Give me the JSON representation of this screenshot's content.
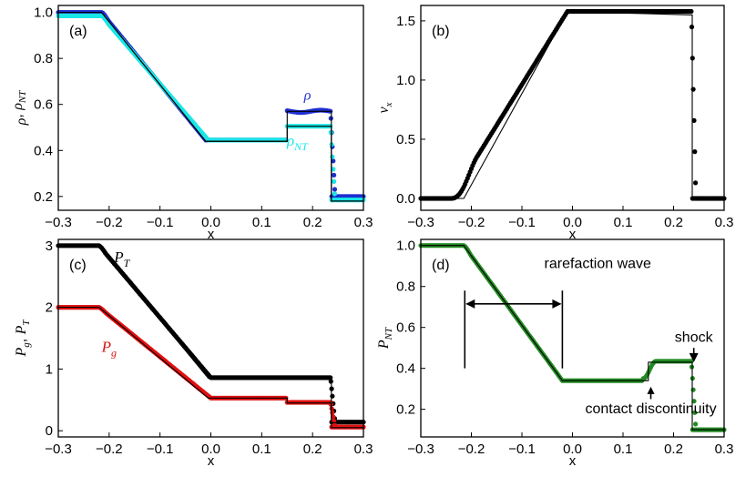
{
  "figure": {
    "colors": {
      "black": "#000000",
      "blue": "#1f2fd0",
      "cyan": "#19e6e6",
      "red": "#e01010",
      "green": "#228b22",
      "exact": "#000000"
    }
  },
  "chart_data": [
    {
      "type": "line",
      "panel_label": "(a)",
      "xlabel": "x",
      "ylabel_parts": [
        "ρ",
        ", ",
        "ρ",
        "NT"
      ],
      "xlim": [
        -0.3,
        0.3
      ],
      "ylim": [
        0.14,
        1.03
      ],
      "xticks": [
        -0.3,
        -0.2,
        -0.1,
        0.0,
        0.1,
        0.2,
        0.3
      ],
      "xtick_labels": [
        "−0.3",
        "−0.2",
        "−0.1",
        "0.0",
        "0.1",
        "0.2",
        "0.3"
      ],
      "yticks": [
        0.2,
        0.4,
        0.6,
        0.8,
        1.0
      ],
      "ytick_labels": [
        "0.2",
        "0.4",
        "0.6",
        "0.8",
        "1.0"
      ],
      "exact_lines": [
        {
          "name": "exact ρ",
          "x": [
            -0.3,
            -0.215,
            -0.01,
            0.15,
            0.15,
            0.237,
            0.237,
            0.3
          ],
          "y": [
            1.0,
            1.0,
            0.44,
            0.44,
            0.57,
            0.57,
            0.18,
            0.18
          ]
        },
        {
          "name": "exact ρNT",
          "x": [
            -0.3,
            -0.215,
            -0.01,
            0.15,
            0.15,
            0.237,
            0.237,
            0.3
          ],
          "y": [
            1.0,
            1.0,
            0.44,
            0.44,
            0.505,
            0.505,
            0.18,
            0.18
          ]
        }
      ],
      "series": [
        {
          "name": "ρ",
          "color": "blue",
          "profile": "rho"
        },
        {
          "name": "ρNT",
          "color": "cyan",
          "profile": "rhoNT"
        }
      ],
      "annotations": [
        {
          "text": "ρ",
          "x": 0.19,
          "y": 0.62,
          "color": "blue"
        },
        {
          "text_parts": [
            "ρ",
            "NT"
          ],
          "x": 0.17,
          "y": 0.42,
          "color": "cyan"
        }
      ]
    },
    {
      "type": "line",
      "panel_label": "(b)",
      "xlabel": "x",
      "ylabel_parts": [
        "v",
        "x"
      ],
      "xlim": [
        -0.3,
        0.3
      ],
      "ylim": [
        -0.1,
        1.63
      ],
      "xticks": [
        -0.3,
        -0.2,
        -0.1,
        0.0,
        0.1,
        0.2,
        0.3
      ],
      "xtick_labels": [
        "−0.3",
        "−0.2",
        "−0.1",
        "0.0",
        "0.1",
        "0.2",
        "0.3"
      ],
      "yticks": [
        0.0,
        0.5,
        1.0,
        1.5
      ],
      "ytick_labels": [
        "0.0",
        "0.5",
        "1.0",
        "1.5"
      ],
      "exact_lines": [
        {
          "name": "exact vx",
          "x": [
            -0.3,
            -0.215,
            -0.01,
            0.237,
            0.237,
            0.3
          ],
          "y": [
            0.0,
            0.0,
            1.58,
            1.55,
            0.0,
            0.0
          ]
        }
      ],
      "series": [
        {
          "name": "vx",
          "color": "black",
          "profile": "vx"
        }
      ],
      "annotations": []
    },
    {
      "type": "line",
      "panel_label": "(c)",
      "xlabel": "x",
      "ylabel_parts": [
        "P",
        "g",
        ", ",
        "P",
        "T"
      ],
      "xlim": [
        -0.3,
        0.3
      ],
      "ylim": [
        -0.1,
        3.1
      ],
      "xticks": [
        -0.3,
        -0.2,
        -0.1,
        0.0,
        0.1,
        0.2,
        0.3
      ],
      "xtick_labels": [
        "−0.3",
        "−0.2",
        "−0.1",
        "0.0",
        "0.1",
        "0.2",
        "0.3"
      ],
      "yticks": [
        0,
        1,
        2,
        3
      ],
      "ytick_labels": [
        "0",
        "1",
        "2",
        "3"
      ],
      "exact_lines": [
        {
          "name": "exact PT",
          "x": [
            -0.3,
            -0.22,
            -0.005,
            0.237,
            0.237,
            0.3
          ],
          "y": [
            3.0,
            3.0,
            0.85,
            0.85,
            0.13,
            0.13
          ]
        },
        {
          "name": "exact Pg",
          "x": [
            -0.3,
            -0.22,
            -0.005,
            0.15,
            0.15,
            0.237,
            0.237,
            0.3
          ],
          "y": [
            2.0,
            2.0,
            0.53,
            0.53,
            0.45,
            0.45,
            0.05,
            0.05
          ]
        }
      ],
      "series": [
        {
          "name": "PT",
          "color": "black",
          "profile": "PT"
        },
        {
          "name": "Pg",
          "color": "red",
          "profile": "Pg"
        }
      ],
      "annotations": [
        {
          "text_parts": [
            "P",
            "T"
          ],
          "x": -0.175,
          "y": 2.73,
          "color": "black"
        },
        {
          "text_parts": [
            "P",
            "g"
          ],
          "x": -0.2,
          "y": 1.28,
          "color": "red"
        }
      ]
    },
    {
      "type": "line",
      "panel_label": "(d)",
      "xlabel": "x",
      "ylabel_parts": [
        "P",
        "NT"
      ],
      "xlim": [
        -0.3,
        0.3
      ],
      "ylim": [
        0.065,
        1.03
      ],
      "xticks": [
        -0.3,
        -0.2,
        -0.1,
        0.0,
        0.1,
        0.2,
        0.3
      ],
      "xtick_labels": [
        "−0.3",
        "−0.2",
        "−0.1",
        "0.0",
        "0.1",
        "0.2",
        "0.3"
      ],
      "yticks": [
        0.2,
        0.4,
        0.6,
        0.8,
        1.0
      ],
      "ytick_labels": [
        "0.2",
        "0.4",
        "0.6",
        "0.8",
        "1.0"
      ],
      "exact_lines": [
        {
          "name": "exact PNT",
          "x": [
            -0.3,
            -0.215,
            -0.02,
            0.15,
            0.15,
            0.237,
            0.237,
            0.3
          ],
          "y": [
            1.0,
            1.0,
            0.34,
            0.34,
            0.43,
            0.43,
            0.1,
            0.1
          ]
        }
      ],
      "series": [
        {
          "name": "PNT",
          "color": "green",
          "profile": "PNT"
        }
      ],
      "annotations": [
        {
          "text": "rarefaction wave",
          "x": 0.05,
          "y": 0.89,
          "color": "black"
        },
        {
          "text": "shock",
          "x": 0.24,
          "y": 0.53,
          "color": "black"
        },
        {
          "text": "contact discontinuity",
          "x": 0.155,
          "y": 0.18,
          "color": "black"
        }
      ],
      "rarefaction_bracket": {
        "x_left": -0.213,
        "x_right": -0.02,
        "y_arrow": 0.715,
        "y_top": 0.78,
        "y_bottom": 0.4
      },
      "shock_arrow": {
        "x": 0.24,
        "y_from": 0.5,
        "y_to": 0.43
      },
      "contact_arrow": {
        "x": 0.155,
        "y_from": 0.25,
        "y_to": 0.31
      }
    }
  ]
}
